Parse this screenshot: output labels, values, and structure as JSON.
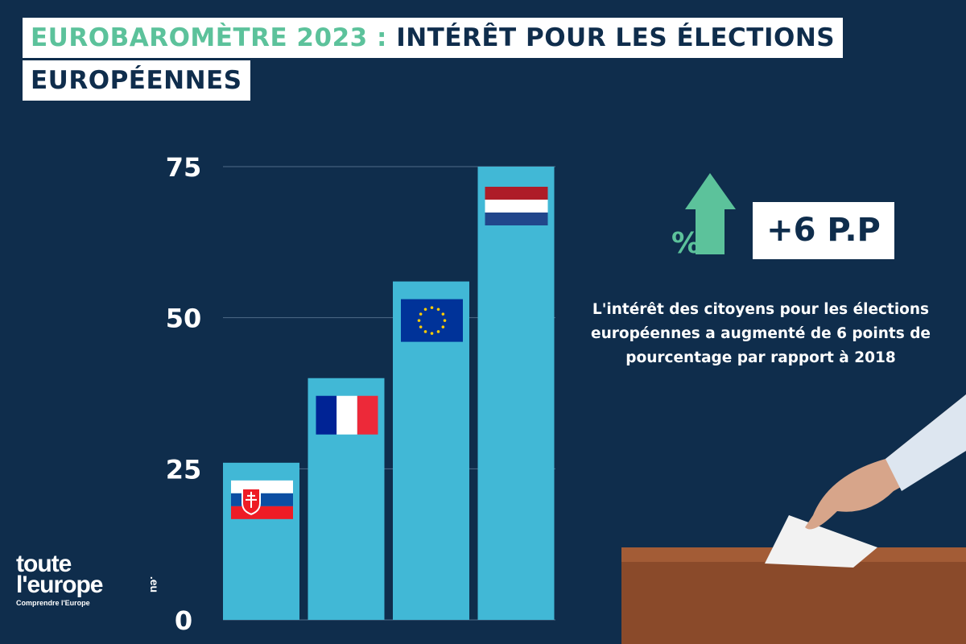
{
  "title": {
    "highlight": "EUROBAROMÈTRE 2023 :",
    "line1_rest": " INTÉRÊT POUR LES ÉLECTIONS",
    "line2": "EUROPÉENNES"
  },
  "highlight": {
    "value": "+6 P.P",
    "icon": "percent-up-arrow-icon",
    "description": "L'intérêt des citoyens pour les élections européennes a augmenté de 6 points de pourcentage par rapport à 2018"
  },
  "logo": {
    "line1": "toute",
    "line2": "l'europe",
    "suffix": ".eu",
    "tagline": "Comprendre l'Europe"
  },
  "colors": {
    "background": "#0f2d4c",
    "bar": "#41b8d6",
    "accent": "#5cc29b"
  },
  "chart_data": {
    "type": "bar",
    "categories": [
      "Slovaquie",
      "France",
      "Union européenne",
      "Pays-Bas"
    ],
    "category_icons": [
      "flag-slovakia-icon",
      "flag-france-icon",
      "flag-eu-icon",
      "flag-netherlands-icon"
    ],
    "values": [
      26,
      40,
      56,
      75
    ],
    "ylim": [
      0,
      75
    ],
    "yticks": [
      "0",
      "25",
      "50",
      "75"
    ],
    "grid": true,
    "xlabel": "",
    "ylabel": ""
  }
}
